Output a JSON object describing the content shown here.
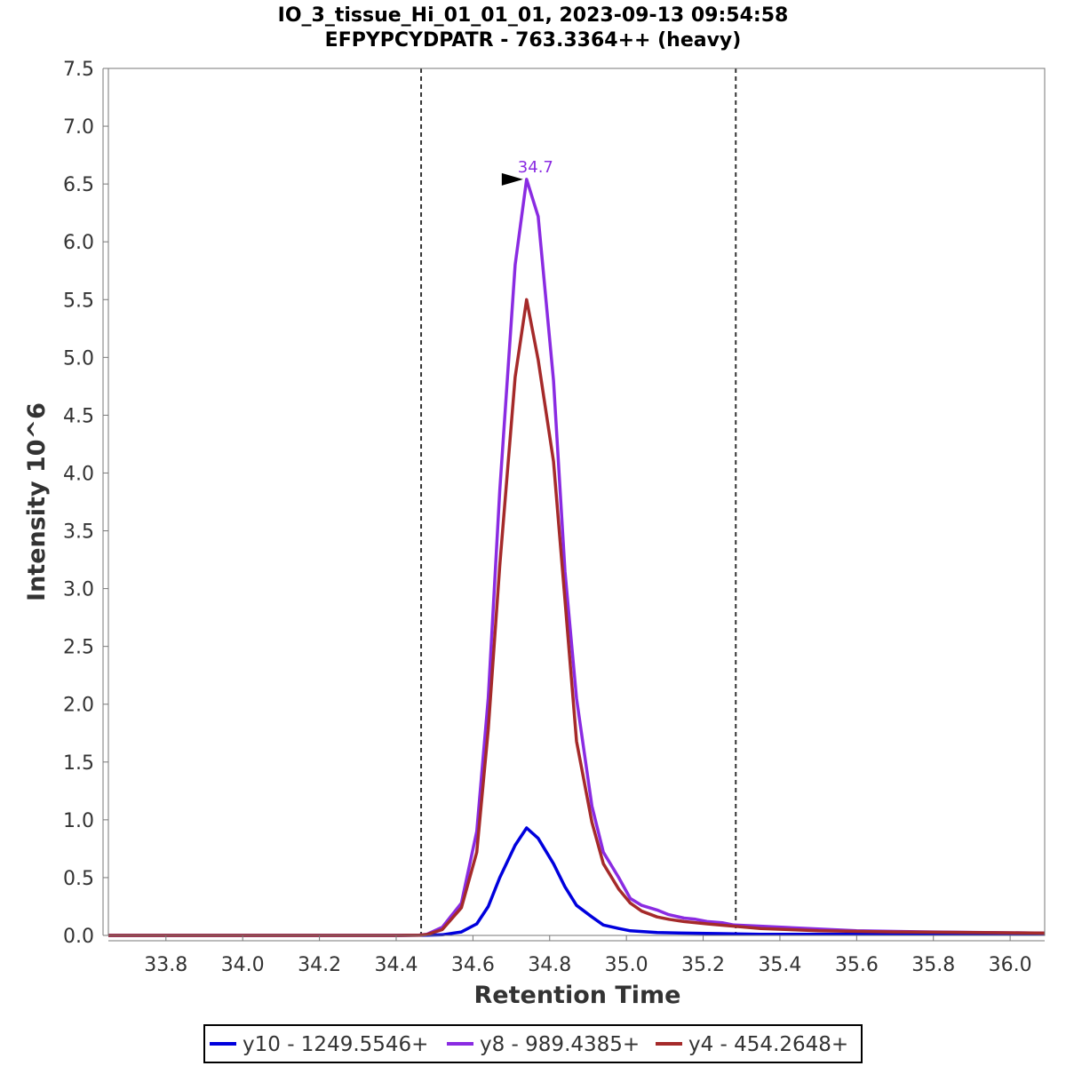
{
  "chart_data": {
    "type": "line",
    "title": "IO_3_tissue_Hi_01_01_01, 2023-09-13 09:54:58",
    "subtitle": "EFPYPCYDPATR - 763.3364++ (heavy)",
    "xlabel": "Retention Time",
    "ylabel": "Intensity 10^6",
    "xlim": [
      33.65,
      36.09
    ],
    "ylim": [
      0,
      7.5
    ],
    "x_ticks": [
      "33.8",
      "34.0",
      "34.2",
      "34.4",
      "34.6",
      "34.8",
      "35.0",
      "35.2",
      "35.4",
      "35.6",
      "35.8",
      "36.0"
    ],
    "y_ticks": [
      "0.0",
      "0.5",
      "1.0",
      "1.5",
      "2.0",
      "2.5",
      "3.0",
      "3.5",
      "4.0",
      "4.5",
      "5.0",
      "5.5",
      "6.0",
      "6.5",
      "7.0",
      "7.5"
    ],
    "grid": false,
    "legend_position": "bottom",
    "integration_boundaries": [
      34.465,
      35.285
    ],
    "peak_annotation": {
      "x": 34.74,
      "y": 6.54,
      "label": "34.7",
      "color": "#8a2be2"
    },
    "series": [
      {
        "name": "y10 - 1249.5546+",
        "color": "#0000dd",
        "x": [
          33.65,
          33.9,
          34.2,
          34.4,
          34.48,
          34.52,
          34.57,
          34.61,
          34.64,
          34.67,
          34.71,
          34.74,
          34.77,
          34.81,
          34.84,
          34.87,
          34.91,
          34.94,
          34.98,
          35.01,
          35.08,
          35.15,
          35.25,
          35.35,
          35.5,
          35.7,
          35.9,
          36.09
        ],
        "values": [
          0,
          0,
          0,
          0,
          0.002,
          0.005,
          0.03,
          0.1,
          0.25,
          0.5,
          0.78,
          0.93,
          0.84,
          0.62,
          0.42,
          0.26,
          0.16,
          0.09,
          0.06,
          0.04,
          0.025,
          0.02,
          0.015,
          0.01,
          0.01,
          0.01,
          0.01,
          0.01
        ]
      },
      {
        "name": "y8 - 989.4385+",
        "color": "#8a2be2",
        "x": [
          33.65,
          33.9,
          34.2,
          34.4,
          34.46,
          34.48,
          34.52,
          34.57,
          34.61,
          34.64,
          34.67,
          34.71,
          34.74,
          34.77,
          34.81,
          34.84,
          34.87,
          34.91,
          34.94,
          34.98,
          35.01,
          35.04,
          35.08,
          35.11,
          35.15,
          35.18,
          35.21,
          35.25,
          35.28,
          35.35,
          35.41,
          35.5,
          35.6,
          35.8,
          36.09
        ],
        "values": [
          0,
          0,
          0,
          0,
          0.003,
          0.01,
          0.07,
          0.28,
          0.9,
          2.05,
          3.85,
          5.8,
          6.54,
          6.22,
          4.8,
          3.15,
          2.05,
          1.12,
          0.72,
          0.5,
          0.32,
          0.26,
          0.22,
          0.18,
          0.15,
          0.14,
          0.12,
          0.11,
          0.09,
          0.08,
          0.07,
          0.055,
          0.04,
          0.03,
          0.02
        ]
      },
      {
        "name": "y4 - 454.2648+",
        "color": "#a52a2a",
        "x": [
          33.65,
          33.9,
          34.2,
          34.4,
          34.46,
          34.48,
          34.52,
          34.57,
          34.61,
          34.64,
          34.67,
          34.71,
          34.74,
          34.77,
          34.81,
          34.84,
          34.87,
          34.91,
          34.94,
          34.98,
          35.01,
          35.04,
          35.08,
          35.11,
          35.15,
          35.21,
          35.28,
          35.35,
          35.5,
          35.7,
          36.09
        ],
        "values": [
          0,
          0,
          0,
          0,
          0.002,
          0.008,
          0.05,
          0.24,
          0.72,
          1.78,
          3.2,
          4.83,
          5.5,
          4.98,
          4.1,
          2.9,
          1.68,
          0.98,
          0.62,
          0.4,
          0.28,
          0.21,
          0.16,
          0.14,
          0.12,
          0.1,
          0.08,
          0.06,
          0.04,
          0.03,
          0.02
        ]
      }
    ]
  }
}
